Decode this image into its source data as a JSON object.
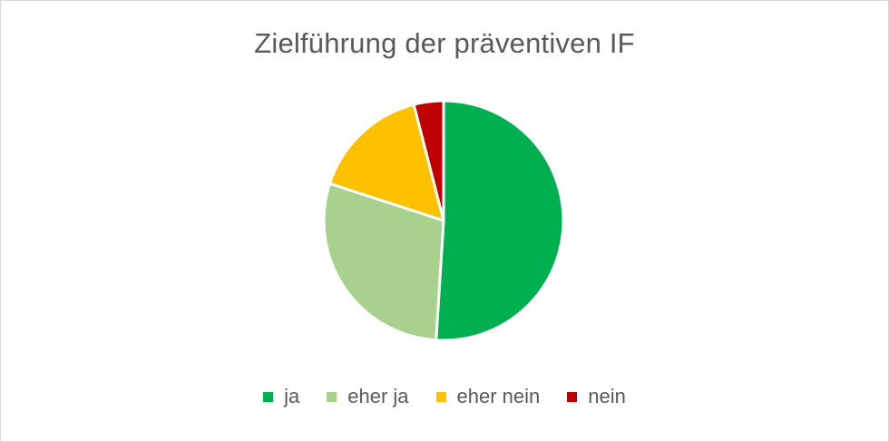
{
  "chart_data": {
    "type": "pie",
    "title": "Zielführung der präventiven IF",
    "categories": [
      "ja",
      "eher ja",
      "eher nein",
      "nein"
    ],
    "values": [
      51,
      29,
      16,
      4
    ],
    "colors": [
      "#00B050",
      "#A9D18E",
      "#FFC000",
      "#C00000"
    ],
    "legend_position": "bottom"
  }
}
